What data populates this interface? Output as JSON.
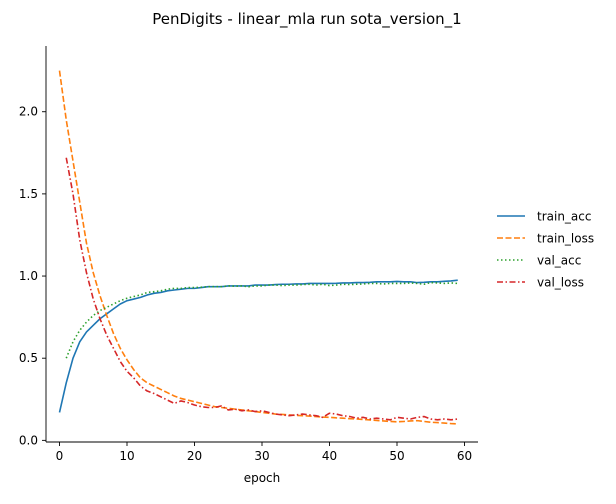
{
  "chart_data": {
    "type": "line",
    "title": "PenDigits - linear_mla run sota_version_1",
    "xlabel": "epoch",
    "ylabel": "",
    "xlim": [
      -2,
      62
    ],
    "ylim": [
      -0.01,
      2.4
    ],
    "x_ticks": [
      0,
      10,
      20,
      30,
      40,
      50,
      60
    ],
    "y_ticks": [
      0.0,
      0.5,
      1.0,
      1.5,
      2.0
    ],
    "x_tick_labels": [
      "0",
      "10",
      "20",
      "30",
      "40",
      "50",
      "60"
    ],
    "y_tick_labels": [
      "0.0",
      "0.5",
      "1.0",
      "1.5",
      "2.0"
    ],
    "grid": false,
    "legend_position": "right",
    "series": [
      {
        "name": "train_acc",
        "color": "#1f77b4",
        "dash": "solid",
        "x": [
          0,
          1,
          2,
          3,
          4,
          5,
          6,
          7,
          8,
          9,
          10,
          11,
          12,
          13,
          14,
          15,
          16,
          17,
          18,
          19,
          20,
          21,
          22,
          23,
          24,
          25,
          26,
          27,
          28,
          29,
          30,
          31,
          32,
          33,
          34,
          35,
          36,
          37,
          38,
          39,
          40,
          41,
          42,
          43,
          44,
          45,
          46,
          47,
          48,
          49,
          50,
          51,
          52,
          53,
          54,
          55,
          56,
          57,
          58,
          59
        ],
        "y": [
          0.17,
          0.35,
          0.5,
          0.6,
          0.66,
          0.7,
          0.74,
          0.77,
          0.8,
          0.83,
          0.85,
          0.86,
          0.87,
          0.885,
          0.895,
          0.9,
          0.91,
          0.915,
          0.92,
          0.925,
          0.925,
          0.93,
          0.935,
          0.935,
          0.935,
          0.94,
          0.94,
          0.94,
          0.94,
          0.945,
          0.945,
          0.945,
          0.948,
          0.95,
          0.95,
          0.952,
          0.952,
          0.955,
          0.955,
          0.955,
          0.955,
          0.956,
          0.958,
          0.958,
          0.96,
          0.96,
          0.962,
          0.965,
          0.965,
          0.965,
          0.967,
          0.965,
          0.965,
          0.96,
          0.962,
          0.965,
          0.965,
          0.968,
          0.97,
          0.975
        ]
      },
      {
        "name": "train_loss",
        "color": "#ff7f0e",
        "dash": "dashed",
        "x": [
          0,
          1,
          2,
          3,
          4,
          5,
          6,
          7,
          8,
          9,
          10,
          11,
          12,
          13,
          14,
          15,
          16,
          17,
          18,
          19,
          20,
          21,
          22,
          23,
          24,
          25,
          26,
          27,
          28,
          29,
          30,
          31,
          32,
          33,
          34,
          35,
          36,
          37,
          38,
          39,
          40,
          41,
          42,
          43,
          44,
          45,
          46,
          47,
          48,
          49,
          50,
          51,
          52,
          53,
          54,
          55,
          56,
          57,
          58,
          59
        ],
        "y": [
          2.25,
          1.95,
          1.7,
          1.45,
          1.2,
          1.02,
          0.88,
          0.76,
          0.65,
          0.56,
          0.49,
          0.43,
          0.38,
          0.35,
          0.33,
          0.31,
          0.29,
          0.27,
          0.255,
          0.245,
          0.235,
          0.225,
          0.215,
          0.205,
          0.2,
          0.195,
          0.19,
          0.185,
          0.18,
          0.175,
          0.17,
          0.165,
          0.16,
          0.158,
          0.155,
          0.152,
          0.15,
          0.148,
          0.145,
          0.142,
          0.14,
          0.137,
          0.135,
          0.132,
          0.13,
          0.127,
          0.124,
          0.121,
          0.118,
          0.115,
          0.113,
          0.115,
          0.118,
          0.12,
          0.115,
          0.11,
          0.108,
          0.105,
          0.102,
          0.1
        ]
      },
      {
        "name": "val_acc",
        "color": "#2ca02c",
        "dash": "dotted",
        "x": [
          1,
          2,
          3,
          4,
          5,
          6,
          7,
          8,
          9,
          10,
          11,
          12,
          13,
          14,
          15,
          16,
          17,
          18,
          19,
          20,
          21,
          22,
          23,
          24,
          25,
          26,
          27,
          28,
          29,
          30,
          31,
          32,
          33,
          34,
          35,
          36,
          37,
          38,
          39,
          40,
          41,
          42,
          43,
          44,
          45,
          46,
          47,
          48,
          49,
          50,
          51,
          52,
          53,
          54,
          55,
          56,
          57,
          58,
          59
        ],
        "y": [
          0.5,
          0.6,
          0.67,
          0.72,
          0.76,
          0.79,
          0.81,
          0.83,
          0.85,
          0.865,
          0.875,
          0.885,
          0.9,
          0.905,
          0.91,
          0.92,
          0.925,
          0.925,
          0.93,
          0.93,
          0.932,
          0.935,
          0.935,
          0.935,
          0.94,
          0.938,
          0.94,
          0.935,
          0.94,
          0.94,
          0.945,
          0.945,
          0.942,
          0.945,
          0.945,
          0.948,
          0.95,
          0.945,
          0.95,
          0.942,
          0.945,
          0.95,
          0.948,
          0.95,
          0.952,
          0.955,
          0.955,
          0.952,
          0.955,
          0.955,
          0.955,
          0.958,
          0.955,
          0.95,
          0.96,
          0.958,
          0.955,
          0.958,
          0.955
        ]
      },
      {
        "name": "val_loss",
        "color": "#d62728",
        "dash": "dashdot",
        "x": [
          1,
          2,
          3,
          4,
          5,
          6,
          7,
          8,
          9,
          10,
          11,
          12,
          13,
          14,
          15,
          16,
          17,
          18,
          19,
          20,
          21,
          22,
          23,
          24,
          25,
          26,
          27,
          28,
          29,
          30,
          31,
          32,
          33,
          34,
          35,
          36,
          37,
          38,
          39,
          40,
          41,
          42,
          43,
          44,
          45,
          46,
          47,
          48,
          49,
          50,
          51,
          52,
          53,
          54,
          55,
          56,
          57,
          58,
          59
        ],
        "y": [
          1.72,
          1.5,
          1.22,
          1.02,
          0.86,
          0.74,
          0.64,
          0.56,
          0.48,
          0.42,
          0.38,
          0.33,
          0.3,
          0.285,
          0.265,
          0.245,
          0.225,
          0.24,
          0.23,
          0.215,
          0.205,
          0.2,
          0.2,
          0.21,
          0.185,
          0.19,
          0.18,
          0.185,
          0.175,
          0.18,
          0.17,
          0.16,
          0.155,
          0.15,
          0.155,
          0.16,
          0.155,
          0.15,
          0.14,
          0.165,
          0.16,
          0.15,
          0.145,
          0.135,
          0.14,
          0.13,
          0.135,
          0.13,
          0.125,
          0.14,
          0.135,
          0.13,
          0.14,
          0.145,
          0.13,
          0.125,
          0.13,
          0.125,
          0.13
        ]
      }
    ]
  }
}
